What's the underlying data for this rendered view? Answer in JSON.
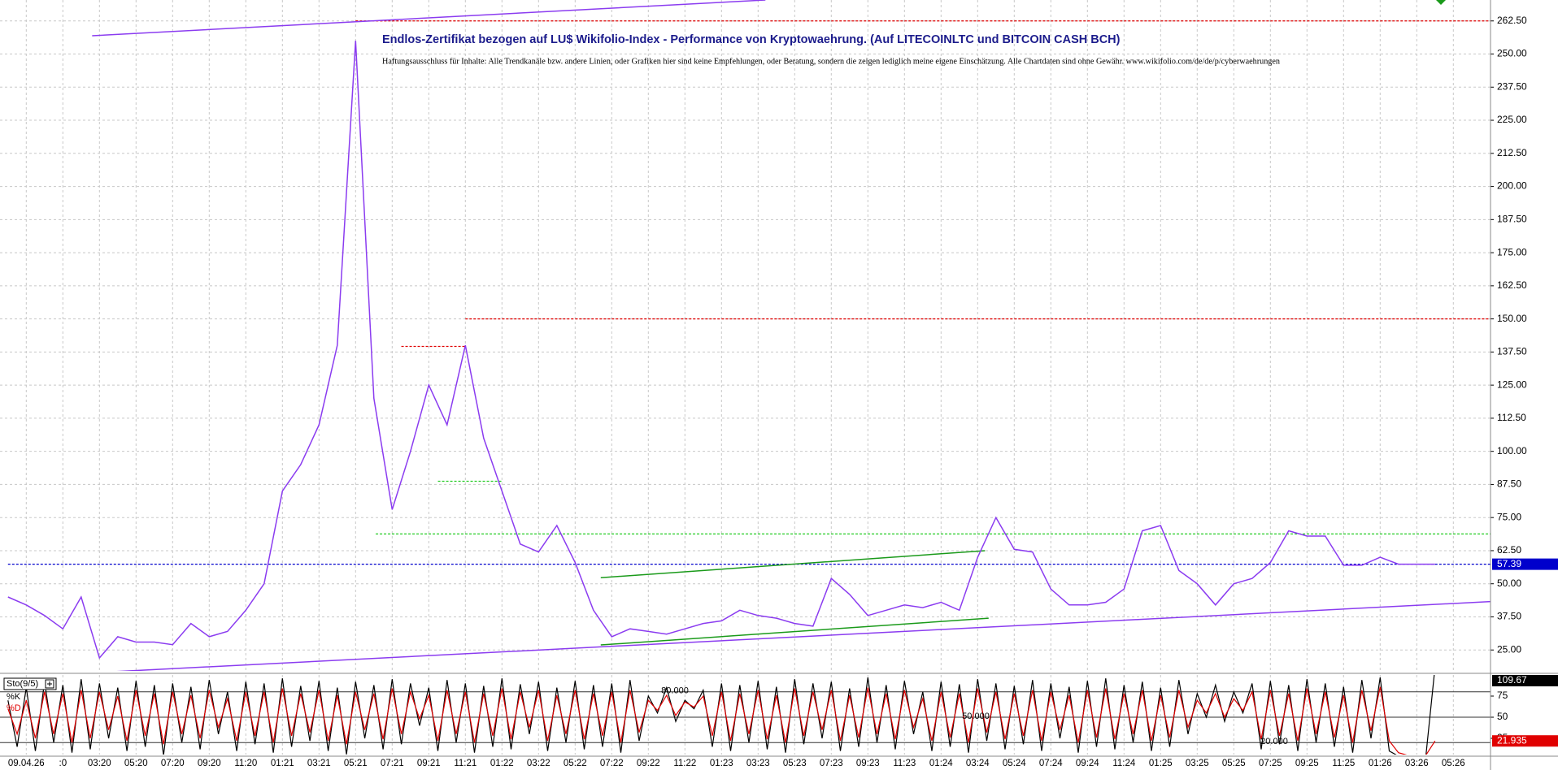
{
  "chart_data": [
    {
      "type": "line",
      "title": "Endlos-Zertifikat bezogen auf LU$ Wikifolio-Index - Performance von Kryptowaehrung. (Auf LITECOINLTC und BITCOIN CASH BCH)",
      "subtitle": "Haftungsausschluss für Inhalte: Alle Trendkanäle bzw. andere Linien, oder Grafiken hier sind keine Empfehlungen, oder Beratung, sondern die zeigen lediglich meine eigene Einschätzung. Alle Chartdaten sind ohne Gewähr. www.wikifolio.com/de/de/p/cyberwaehrungen",
      "categories": [
        null,
        "09.04.26",
        null,
        ":0",
        null,
        "03:20",
        null,
        "05:20",
        null,
        "07:20",
        null,
        "09:20",
        null,
        "11:20",
        null,
        "01:21",
        null,
        "03:21",
        null,
        "05:21",
        null,
        "07:21",
        null,
        "09:21",
        null,
        "11:21",
        null,
        "01:22",
        null,
        "03:22",
        null,
        "05:22",
        null,
        "07:22",
        null,
        "09:22",
        null,
        "11:22",
        null,
        "01:23",
        null,
        "03:23",
        null,
        "05:23",
        null,
        "07:23",
        null,
        "09:23",
        null,
        "11:23",
        null,
        "01:24",
        null,
        "03:24",
        null,
        "05:24",
        null,
        "07:24",
        null,
        "09:24",
        null,
        "11:24",
        null,
        "01:25",
        null,
        "03:25",
        null,
        "05:25",
        null,
        "07:25",
        null,
        "09:25",
        null,
        "11:25",
        null,
        "01:26",
        null,
        "03:26",
        null,
        "05:26",
        null
      ],
      "values": [
        45,
        42,
        38,
        33,
        45,
        22,
        30,
        28,
        28,
        27,
        35,
        30,
        32,
        40,
        50,
        85,
        95,
        110,
        140,
        255,
        120,
        78,
        100,
        125,
        110,
        140,
        105,
        85,
        65,
        62,
        72,
        58,
        40,
        30,
        33,
        32,
        31,
        33,
        35,
        36,
        40,
        38,
        37,
        35,
        34,
        52,
        46,
        38,
        40,
        42,
        41,
        43,
        40,
        60,
        75,
        63,
        62,
        48,
        42,
        42,
        43,
        48,
        70,
        72,
        55,
        50,
        42,
        50,
        52,
        58,
        70,
        68,
        68,
        57,
        57,
        60,
        57.4,
        57.4,
        57.39,
        null,
        null
      ],
      "color": "#8b3cf0",
      "ylim": [
        17.1,
        270.4
      ],
      "yticks": [
        {
          "value": 25,
          "label": "25.00"
        },
        {
          "value": 37.5,
          "label": "37.50"
        },
        {
          "value": 50,
          "label": "50.00"
        },
        {
          "value": 62.5,
          "label": "62.50"
        },
        {
          "value": 75,
          "label": "75.00"
        },
        {
          "value": 87.5,
          "label": "87.50"
        },
        {
          "value": 100,
          "label": "100.00"
        },
        {
          "value": 112.5,
          "label": "112.50"
        },
        {
          "value": 125,
          "label": "125.00"
        },
        {
          "value": 137.5,
          "label": "137.50"
        },
        {
          "value": 150,
          "label": "150.00"
        },
        {
          "value": 162.5,
          "label": "162.50"
        },
        {
          "value": 175,
          "label": "175.00"
        },
        {
          "value": 187.5,
          "label": "187.50"
        },
        {
          "value": 200,
          "label": "200.00"
        },
        {
          "value": 212.5,
          "label": "212.50"
        },
        {
          "value": 225,
          "label": "225.00"
        },
        {
          "value": 237.5,
          "label": "237.50"
        },
        {
          "value": 250,
          "label": "250.00"
        },
        {
          "value": 262.5,
          "label": "262.50"
        }
      ],
      "grid": true,
      "levels": [
        {
          "value": 262.5,
          "color": "#e00000",
          "x": [
            19,
            81.1
          ]
        },
        {
          "value": 150,
          "color": "#e00000",
          "x": [
            25,
            81.1
          ]
        },
        {
          "value": 139.6,
          "color": "#e00000",
          "x": [
            21.5,
            25
          ]
        },
        {
          "value": 88.7,
          "color": "#22cc22",
          "x": [
            23.5,
            27
          ]
        },
        {
          "value": 68.8,
          "color": "#22cc22",
          "x": [
            20.1,
            81.1
          ]
        },
        {
          "value": 57.39,
          "color": "#0000cc",
          "x": [
            0,
            81.1
          ]
        }
      ],
      "trendlines": [
        {
          "x": [
            4.6,
            41.4
          ],
          "values": [
            256.9,
            270.4
          ],
          "color": "#8b3cf0"
        },
        {
          "x": [
            4.6,
            81.1
          ],
          "values": [
            16.4,
            43.3
          ],
          "color": "#8b3cf0"
        },
        {
          "x": [
            32.4,
            53.4
          ],
          "values": [
            52.3,
            62.5
          ],
          "color": "#1a9a1a"
        },
        {
          "x": [
            32.4,
            53.6
          ],
          "values": [
            26.9,
            37
          ]
        },
        {
          "x": [
            32.4,
            53.6
          ],
          "values": [
            26.9,
            37
          ],
          "color": "#1a9a1a"
        }
      ]
    },
    {
      "type": "stochastic",
      "title": "Sto(9/5)",
      "x": [
        0,
        0.5,
        1,
        1.5,
        2,
        2.5,
        3,
        3.5,
        4,
        4.5,
        5,
        5.5,
        6,
        6.5,
        7,
        7.5,
        8,
        8.5,
        9,
        9.5,
        10,
        10.5,
        11,
        11.5,
        12,
        12.5,
        13,
        13.5,
        14,
        14.5,
        15,
        15.5,
        16,
        16.5,
        17,
        17.5,
        18,
        18.5,
        19,
        19.5,
        20,
        20.5,
        21,
        21.5,
        22,
        22.5,
        23,
        23.5,
        24,
        24.5,
        25,
        25.5,
        26,
        26.5,
        27,
        27.5,
        28,
        28.5,
        29,
        29.5,
        30,
        30.5,
        31,
        31.5,
        32,
        32.5,
        33,
        33.5,
        34,
        34.5,
        35,
        35.5,
        36,
        36.5,
        37,
        37.5,
        38,
        38.5,
        39,
        39.5,
        40,
        40.5,
        41,
        41.5,
        42,
        42.5,
        43,
        43.5,
        44,
        44.5,
        45,
        45.5,
        46,
        46.5,
        47,
        47.5,
        48,
        48.5,
        49,
        49.5,
        50,
        50.5,
        51,
        51.5,
        52,
        52.5,
        53,
        53.5,
        54,
        54.5,
        55,
        55.5,
        56,
        56.5,
        57,
        57.5,
        58,
        58.5,
        59,
        59.5,
        60,
        60.5,
        61,
        61.5,
        62,
        62.5,
        63,
        63.5,
        64,
        64.5,
        65,
        65.5,
        66,
        66.5,
        67,
        67.5,
        68,
        68.5,
        69,
        69.5,
        70,
        70.5,
        71,
        71.5,
        72,
        72.5,
        73,
        73.5,
        74,
        74.5,
        75,
        75.5,
        76,
        76.5,
        77,
        77.5,
        78
      ],
      "series": [
        {
          "name": "%K",
          "color": "#000000",
          "values": [
            70,
            15,
            85,
            10,
            92,
            20,
            88,
            8,
            95,
            12,
            90,
            25,
            85,
            10,
            93,
            15,
            88,
            5,
            90,
            20,
            86,
            12,
            94,
            30,
            80,
            10,
            92,
            18,
            90,
            8,
            96,
            15,
            87,
            22,
            93,
            10,
            85,
            6,
            92,
            25,
            88,
            12,
            95,
            18,
            90,
            40,
            85,
            10,
            94,
            20,
            90,
            8,
            87,
            15,
            96,
            12,
            89,
            30,
            92,
            10,
            85,
            20,
            93,
            12,
            88,
            15,
            90,
            8,
            94,
            22,
            75,
            55,
            85,
            45,
            70,
            60,
            82,
            15,
            90,
            10,
            88,
            20,
            93,
            12,
            86,
            8,
            95,
            18,
            90,
            25,
            92,
            10,
            84,
            15,
            97,
            20,
            88,
            12,
            93,
            30,
            80,
            10,
            92,
            15,
            89,
            8,
            95,
            22,
            90,
            12,
            87,
            18,
            94,
            10,
            90,
            25,
            86,
            8,
            93,
            15,
            96,
            12,
            88,
            20,
            92,
            10,
            85,
            15,
            94,
            30,
            78,
            50,
            88,
            45,
            80,
            55,
            90,
            12,
            93,
            18,
            88,
            10,
            95,
            20,
            90,
            15,
            86,
            8,
            94,
            25,
            97,
            10,
            4,
            3,
            3,
            4,
            109.67
          ]
        },
        {
          "name": "%D",
          "color": "#e00000",
          "values": [
            60,
            30,
            70,
            25,
            80,
            30,
            78,
            20,
            82,
            25,
            80,
            35,
            75,
            22,
            82,
            28,
            78,
            18,
            80,
            30,
            76,
            25,
            82,
            38,
            72,
            22,
            80,
            28,
            80,
            20,
            84,
            28,
            78,
            32,
            82,
            22,
            76,
            18,
            80,
            35,
            78,
            24,
            84,
            30,
            80,
            48,
            76,
            22,
            82,
            30,
            80,
            20,
            78,
            28,
            84,
            24,
            80,
            38,
            82,
            22,
            76,
            30,
            82,
            24,
            78,
            28,
            80,
            20,
            82,
            32,
            70,
            58,
            76,
            52,
            68,
            62,
            75,
            28,
            80,
            22,
            78,
            30,
            82,
            24,
            76,
            20,
            84,
            28,
            80,
            35,
            82,
            22,
            76,
            26,
            85,
            30,
            78,
            24,
            82,
            38,
            72,
            22,
            80,
            26,
            78,
            20,
            84,
            32,
            80,
            24,
            78,
            28,
            82,
            22,
            80,
            35,
            76,
            20,
            82,
            26,
            84,
            24,
            78,
            30,
            82,
            22,
            76,
            26,
            82,
            38,
            70,
            55,
            78,
            50,
            72,
            58,
            80,
            24,
            82,
            28,
            78,
            22,
            84,
            30,
            80,
            26,
            76,
            20,
            82,
            34,
            86,
            22,
            8,
            5,
            4,
            5,
            21.935
          ]
        }
      ],
      "ylim": [
        5.8,
        100
      ],
      "yticks": [
        25,
        50,
        75
      ],
      "levels": [
        {
          "value": 80,
          "label": "80.000"
        },
        {
          "value": 50,
          "label": "50.000"
        },
        {
          "value": 20,
          "label": "20.000"
        }
      ]
    }
  ]
}
